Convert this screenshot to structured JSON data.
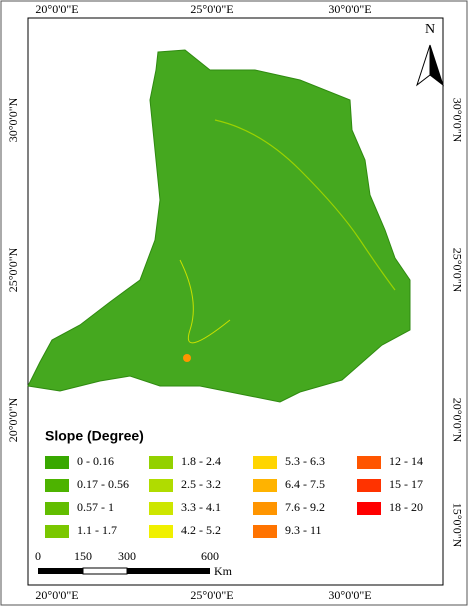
{
  "graticule": {
    "top": [
      "20°0'0\"E",
      "25°0'0\"E",
      "30°0'0\"E"
    ],
    "bottom": [
      "20°0'0\"E",
      "25°0'0\"E",
      "30°0'0\"E"
    ],
    "left": [
      "30°0'0\"N",
      "25°0'0\"N",
      "20°0'0\"N"
    ],
    "right": [
      "30°0'0\"N",
      "25°0'0\"N",
      "20°0'0\"N",
      "15°0'0\"N"
    ]
  },
  "north": "N",
  "legend": {
    "title": "Slope (Degree)",
    "items": [
      {
        "label": "0 - 0.16",
        "color": "#38a800"
      },
      {
        "label": "0.17 - 0.56",
        "color": "#4db300"
      },
      {
        "label": "0.57 - 1",
        "color": "#62bd00"
      },
      {
        "label": "1.1 - 1.7",
        "color": "#7ac700"
      },
      {
        "label": "1.8 - 2.4",
        "color": "#93d100"
      },
      {
        "label": "2.5 - 3.2",
        "color": "#b0dc00"
      },
      {
        "label": "3.3 - 4.1",
        "color": "#cde600"
      },
      {
        "label": "4.2 - 5.2",
        "color": "#f0f000"
      },
      {
        "label": "5.3 - 6.3",
        "color": "#ffd500"
      },
      {
        "label": "6.4 - 7.5",
        "color": "#ffb300"
      },
      {
        "label": "7.6 - 9.2",
        "color": "#ff9500"
      },
      {
        "label": "9.3 - 11",
        "color": "#ff7300"
      },
      {
        "label": "12 - 14",
        "color": "#ff5500"
      },
      {
        "label": "15 - 17",
        "color": "#ff3300"
      },
      {
        "label": "18 - 20",
        "color": "#ff0000"
      }
    ]
  },
  "scale_bar": {
    "labels": [
      "0",
      "150",
      "300",
      "600"
    ],
    "unit": "Km"
  }
}
